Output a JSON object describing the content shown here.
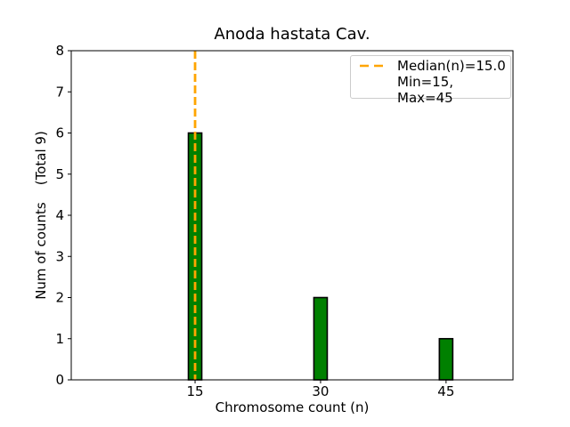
{
  "chart_data": {
    "type": "bar",
    "title": "Anoda hastata Cav.",
    "xlabel": "Chromosome count (n)",
    "ylabel": "Num of counts    (Total 9)",
    "x": [
      15,
      30,
      45
    ],
    "values": [
      6,
      2,
      1
    ],
    "total_counts": 9,
    "bar_width_units": 1.6,
    "xlim": [
      0.2,
      53
    ],
    "ylim": [
      0,
      8
    ],
    "xticks": [
      15,
      30,
      45
    ],
    "yticks": [
      0,
      1,
      2,
      3,
      4,
      5,
      6,
      7,
      8
    ],
    "grid": false,
    "median_line": {
      "x": 15,
      "style": "dashed",
      "label": "Median(n)=15.0"
    },
    "min": 15,
    "max": 45,
    "legend": {
      "position": "upper right",
      "items": [
        {
          "label": "Median(n)=15.0",
          "marker": "dashed-line"
        },
        {
          "label": "Min=15, Max=45",
          "marker": "none"
        }
      ]
    },
    "colors": {
      "bar_fill": "#008000",
      "bar_edge": "#000000",
      "median_line": "#FFA500",
      "axis": "#000000",
      "legend_border": "#cccccc",
      "background": "#ffffff",
      "text": "#000000"
    }
  }
}
